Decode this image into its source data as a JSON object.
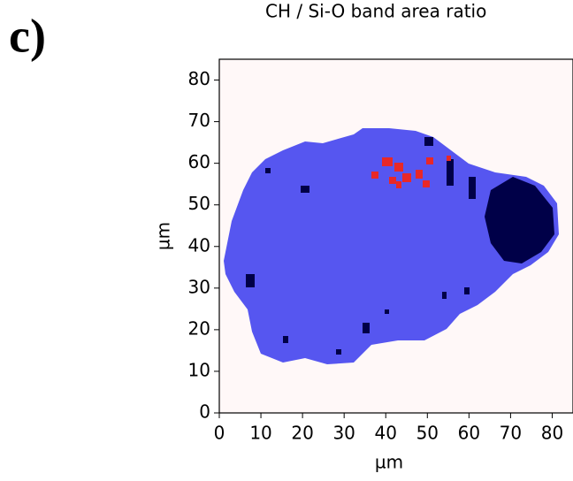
{
  "panel_label": "c)",
  "chart_data": {
    "type": "heatmap",
    "title": "CH / Si-O band area ratio",
    "xlabel": "µm",
    "ylabel": "µm",
    "xlim": [
      0,
      85
    ],
    "ylim": [
      0,
      85
    ],
    "xticks": [
      0,
      10,
      20,
      30,
      40,
      50,
      60,
      70,
      80
    ],
    "yticks": [
      0,
      10,
      20,
      30,
      40,
      50,
      60,
      70,
      80
    ]
  }
}
